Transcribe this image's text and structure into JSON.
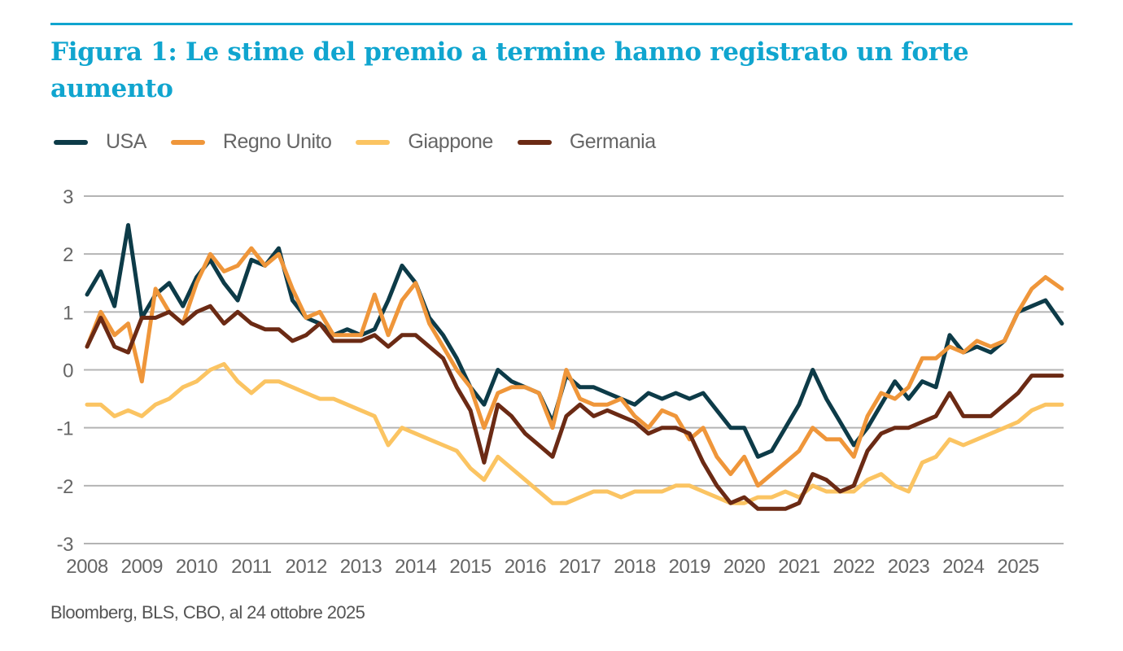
{
  "title": "Figura 1: Le stime del premio a termine hanno registrato un forte aumento",
  "source": "Bloomberg, BLS, CBO, al 24 ottobre 2025",
  "chart_data": {
    "type": "line",
    "title": "Figura 1: Le stime del premio a termine hanno registrato un forte aumento",
    "xlabel": "",
    "ylabel": "",
    "ylim": [
      -3,
      3
    ],
    "xlim": [
      2008,
      2025.8
    ],
    "yticks": [
      "3",
      "2",
      "1",
      "0",
      "-1",
      "-2",
      "-3"
    ],
    "xticks": [
      "2008",
      "2009",
      "2010",
      "2011",
      "2012",
      "2013",
      "2014",
      "2015",
      "2016",
      "2017",
      "2018",
      "2019",
      "2020",
      "2021",
      "2022",
      "2023",
      "2024",
      "2025"
    ],
    "grid": "horizontal",
    "legend_position": "top-left",
    "x": [
      2008,
      2008.25,
      2008.5,
      2008.75,
      2009,
      2009.25,
      2009.5,
      2009.75,
      2010,
      2010.25,
      2010.5,
      2010.75,
      2011,
      2011.25,
      2011.5,
      2011.75,
      2012,
      2012.25,
      2012.5,
      2012.75,
      2013,
      2013.25,
      2013.5,
      2013.75,
      2014,
      2014.25,
      2014.5,
      2014.75,
      2015,
      2015.25,
      2015.5,
      2015.75,
      2016,
      2016.25,
      2016.5,
      2016.75,
      2017,
      2017.25,
      2017.5,
      2017.75,
      2018,
      2018.25,
      2018.5,
      2018.75,
      2019,
      2019.25,
      2019.5,
      2019.75,
      2020,
      2020.25,
      2020.5,
      2020.75,
      2021,
      2021.25,
      2021.5,
      2021.75,
      2022,
      2022.25,
      2022.5,
      2022.75,
      2023,
      2023.25,
      2023.5,
      2023.75,
      2024,
      2024.25,
      2024.5,
      2024.75,
      2025,
      2025.25,
      2025.5,
      2025.8
    ],
    "series": [
      {
        "name": "USA",
        "color": "#0d3b48",
        "values": [
          1.3,
          1.7,
          1.1,
          2.5,
          0.9,
          1.3,
          1.5,
          1.1,
          1.6,
          1.9,
          1.5,
          1.2,
          1.9,
          1.8,
          2.1,
          1.2,
          0.9,
          0.8,
          0.6,
          0.7,
          0.6,
          0.7,
          1.2,
          1.8,
          1.5,
          0.9,
          0.6,
          0.2,
          -0.3,
          -0.6,
          0.0,
          -0.2,
          -0.3,
          -0.4,
          -0.9,
          -0.1,
          -0.3,
          -0.3,
          -0.4,
          -0.5,
          -0.6,
          -0.4,
          -0.5,
          -0.4,
          -0.5,
          -0.4,
          -0.7,
          -1.0,
          -1.0,
          -1.5,
          -1.4,
          -1.0,
          -0.6,
          0.0,
          -0.5,
          -0.9,
          -1.3,
          -1.0,
          -0.6,
          -0.2,
          -0.5,
          -0.2,
          -0.3,
          0.6,
          0.3,
          0.4,
          0.3,
          0.5,
          1.0,
          1.1,
          1.2,
          0.8
        ]
      },
      {
        "name": "Regno Unito",
        "color": "#ef963a",
        "values": [
          0.4,
          1.0,
          0.6,
          0.8,
          -0.2,
          1.4,
          1.0,
          0.8,
          1.5,
          2.0,
          1.7,
          1.8,
          2.1,
          1.8,
          2.0,
          1.4,
          0.9,
          1.0,
          0.6,
          0.6,
          0.6,
          1.3,
          0.6,
          1.2,
          1.5,
          0.8,
          0.4,
          0.0,
          -0.3,
          -1.0,
          -0.4,
          -0.3,
          -0.3,
          -0.4,
          -1.0,
          0.0,
          -0.5,
          -0.6,
          -0.6,
          -0.5,
          -0.8,
          -1.0,
          -0.7,
          -0.8,
          -1.2,
          -1.0,
          -1.5,
          -1.8,
          -1.5,
          -2.0,
          -1.8,
          -1.6,
          -1.4,
          -1.0,
          -1.2,
          -1.2,
          -1.5,
          -0.8,
          -0.4,
          -0.5,
          -0.3,
          0.2,
          0.2,
          0.4,
          0.3,
          0.5,
          0.4,
          0.5,
          1.0,
          1.4,
          1.6,
          1.4
        ]
      },
      {
        "name": "Giappone",
        "color": "#fbc462",
        "values": [
          -0.6,
          -0.6,
          -0.8,
          -0.7,
          -0.8,
          -0.6,
          -0.5,
          -0.3,
          -0.2,
          0.0,
          0.1,
          -0.2,
          -0.4,
          -0.2,
          -0.2,
          -0.3,
          -0.4,
          -0.5,
          -0.5,
          -0.6,
          -0.7,
          -0.8,
          -1.3,
          -1.0,
          -1.1,
          -1.2,
          -1.3,
          -1.4,
          -1.7,
          -1.9,
          -1.5,
          -1.7,
          -1.9,
          -2.1,
          -2.3,
          -2.3,
          -2.2,
          -2.1,
          -2.1,
          -2.2,
          -2.1,
          -2.1,
          -2.1,
          -2.0,
          -2.0,
          -2.1,
          -2.2,
          -2.3,
          -2.3,
          -2.2,
          -2.2,
          -2.1,
          -2.2,
          -2.0,
          -2.1,
          -2.1,
          -2.1,
          -1.9,
          -1.8,
          -2.0,
          -2.1,
          -1.6,
          -1.5,
          -1.2,
          -1.3,
          -1.2,
          -1.1,
          -1.0,
          -0.9,
          -0.7,
          -0.6,
          -0.6
        ]
      },
      {
        "name": "Germania",
        "color": "#6b2a14",
        "values": [
          0.4,
          0.9,
          0.4,
          0.3,
          0.9,
          0.9,
          1.0,
          0.8,
          1.0,
          1.1,
          0.8,
          1.0,
          0.8,
          0.7,
          0.7,
          0.5,
          0.6,
          0.8,
          0.5,
          0.5,
          0.5,
          0.6,
          0.4,
          0.6,
          0.6,
          0.4,
          0.2,
          -0.3,
          -0.7,
          -1.6,
          -0.6,
          -0.8,
          -1.1,
          -1.3,
          -1.5,
          -0.8,
          -0.6,
          -0.8,
          -0.7,
          -0.8,
          -0.9,
          -1.1,
          -1.0,
          -1.0,
          -1.1,
          -1.6,
          -2.0,
          -2.3,
          -2.2,
          -2.4,
          -2.4,
          -2.4,
          -2.3,
          -1.8,
          -1.9,
          -2.1,
          -2.0,
          -1.4,
          -1.1,
          -1.0,
          -1.0,
          -0.9,
          -0.8,
          -0.4,
          -0.8,
          -0.8,
          -0.8,
          -0.6,
          -0.4,
          -0.1,
          -0.1,
          -0.1
        ]
      }
    ]
  }
}
